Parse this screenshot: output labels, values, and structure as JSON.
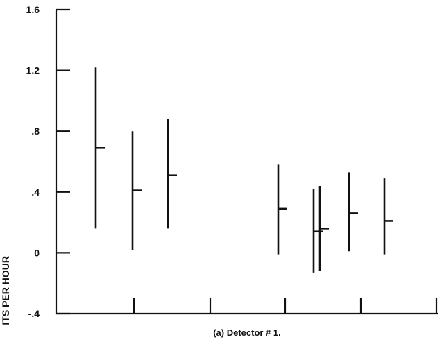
{
  "chart_data": {
    "type": "scatter",
    "title": "",
    "ylabel": "ITS PER HOUR",
    "caption": "(a) Detector # 1.",
    "ylim": [
      -0.4,
      1.6
    ],
    "y_ticks": [
      {
        "value": 1.6,
        "label": "1.6"
      },
      {
        "value": 1.2,
        "label": "1.2"
      },
      {
        "value": 0.8,
        "label": ".8"
      },
      {
        "value": 0.4,
        "label": ".4"
      },
      {
        "value": 0.0,
        "label": "0"
      },
      {
        "value": -0.4,
        "label": "-.4"
      }
    ],
    "grid": false,
    "series": [
      {
        "points": [
          {
            "x": 1,
            "y": 0.69,
            "low": 0.16,
            "high": 1.22
          },
          {
            "x": 2,
            "y": 0.41,
            "low": 0.02,
            "high": 0.8
          },
          {
            "x": 3,
            "y": 0.51,
            "low": 0.16,
            "high": 0.88
          },
          {
            "x": 4,
            "y": 0.29,
            "low": -0.01,
            "high": 0.58
          },
          {
            "x": 5,
            "y": 0.14,
            "low": -0.13,
            "high": 0.42
          },
          {
            "x": 6,
            "y": 0.16,
            "low": -0.12,
            "high": 0.44
          },
          {
            "x": 7,
            "y": 0.26,
            "low": 0.01,
            "high": 0.53
          },
          {
            "x": 8,
            "y": 0.21,
            "low": -0.01,
            "high": 0.49
          }
        ]
      }
    ]
  }
}
